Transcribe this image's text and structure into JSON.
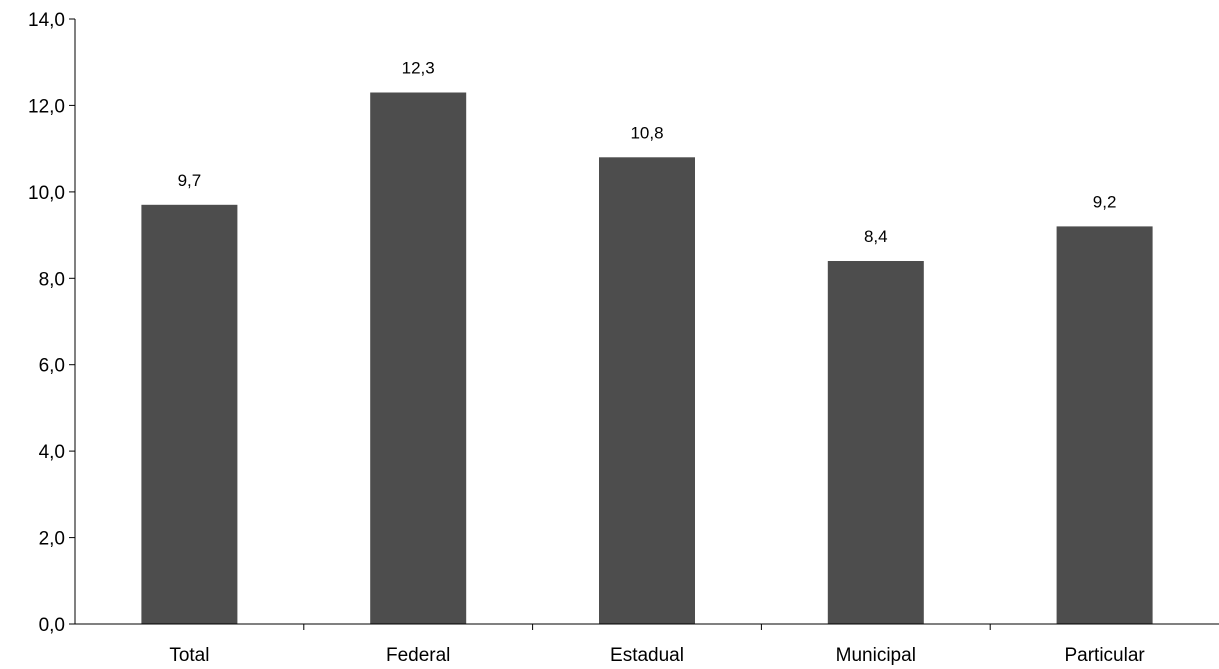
{
  "chart_data": {
    "type": "bar",
    "categories": [
      "Total",
      "Federal",
      "Estadual",
      "Municipal",
      "Particular"
    ],
    "values": [
      9.7,
      12.3,
      10.8,
      8.4,
      9.2
    ],
    "data_labels": [
      "9,7",
      "12,3",
      "10,8",
      "8,4",
      "9,2"
    ],
    "y_ticks": [
      0,
      2,
      4,
      6,
      8,
      10,
      12,
      14
    ],
    "y_tick_labels": [
      "0,0",
      "2,0",
      "4,0",
      "6,0",
      "8,0",
      "10,0",
      "12,0",
      "14,0"
    ],
    "ylim": [
      0,
      14
    ],
    "grid": false,
    "legend": "none",
    "bar_color": "#4d4d4d",
    "axis_color": "#000000"
  }
}
